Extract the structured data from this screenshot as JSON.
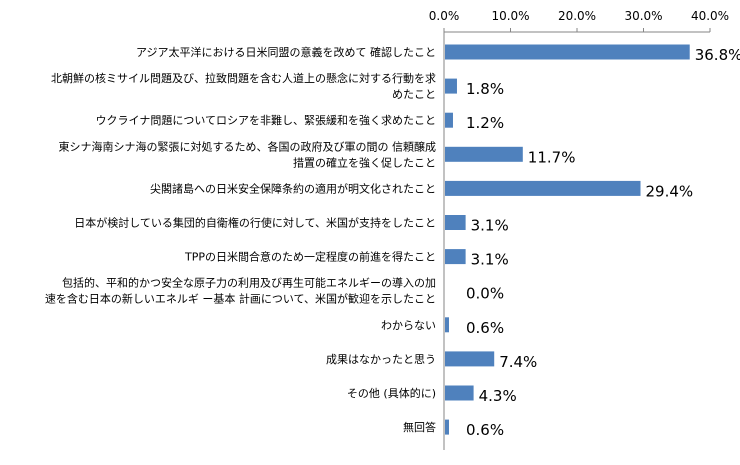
{
  "chart_data": {
    "type": "bar",
    "orientation": "horizontal",
    "title": "",
    "xlabel": "",
    "ylabel": "",
    "xlim": [
      0,
      40
    ],
    "xticks": [
      "0.0%",
      "10.0%",
      "20.0%",
      "30.0%",
      "40.0%"
    ],
    "axis_position": "top",
    "grid": false,
    "legend": "none",
    "bar_color": "#4F81BD",
    "categories": [
      [
        "アジア太平洋における日米同盟の意義を改めて 確認したこと"
      ],
      [
        "北朝鮮の核ミサイル問題及び、拉致問題を含む人道上の懸念に対する行動を求",
        "めたこと"
      ],
      [
        "ウクライナ問題についてロシアを非難し、緊張緩和を強く求めたこと"
      ],
      [
        "東シナ海南シナ海の緊張に対処するため、各国の政府及び軍の間の 信頼醸成",
        "措置の確立を強く促したこと"
      ],
      [
        "尖閣諸島への日米安全保障条約の適用が明文化されたこと"
      ],
      [
        "日本が検討している集団的自衛権の行使に対して、米国が支持をしたこと"
      ],
      [
        "TPPの日米間合意のため一定程度の前進を得たこと"
      ],
      [
        "包括的、平和的かつ安全な原子力の利用及び再生可能エネルギーの導入の加",
        "速を含む日本の新しいエネルギ ー基本 計画について、米国が歓迎を示したこと"
      ],
      [
        "わからない"
      ],
      [
        "成果はなかったと思う"
      ],
      [
        "その他 (具体的に)"
      ],
      [
        "無回答"
      ]
    ],
    "values": [
      36.8,
      1.8,
      1.2,
      11.7,
      29.4,
      3.1,
      3.1,
      0.0,
      0.6,
      7.4,
      4.3,
      0.6
    ],
    "value_labels": [
      "36.8%",
      "1.8%",
      "1.2%",
      "11.7%",
      "29.4%",
      "3.1%",
      "3.1%",
      "0.0%",
      "0.6%",
      "7.4%",
      "4.3%",
      "0.6%"
    ]
  }
}
